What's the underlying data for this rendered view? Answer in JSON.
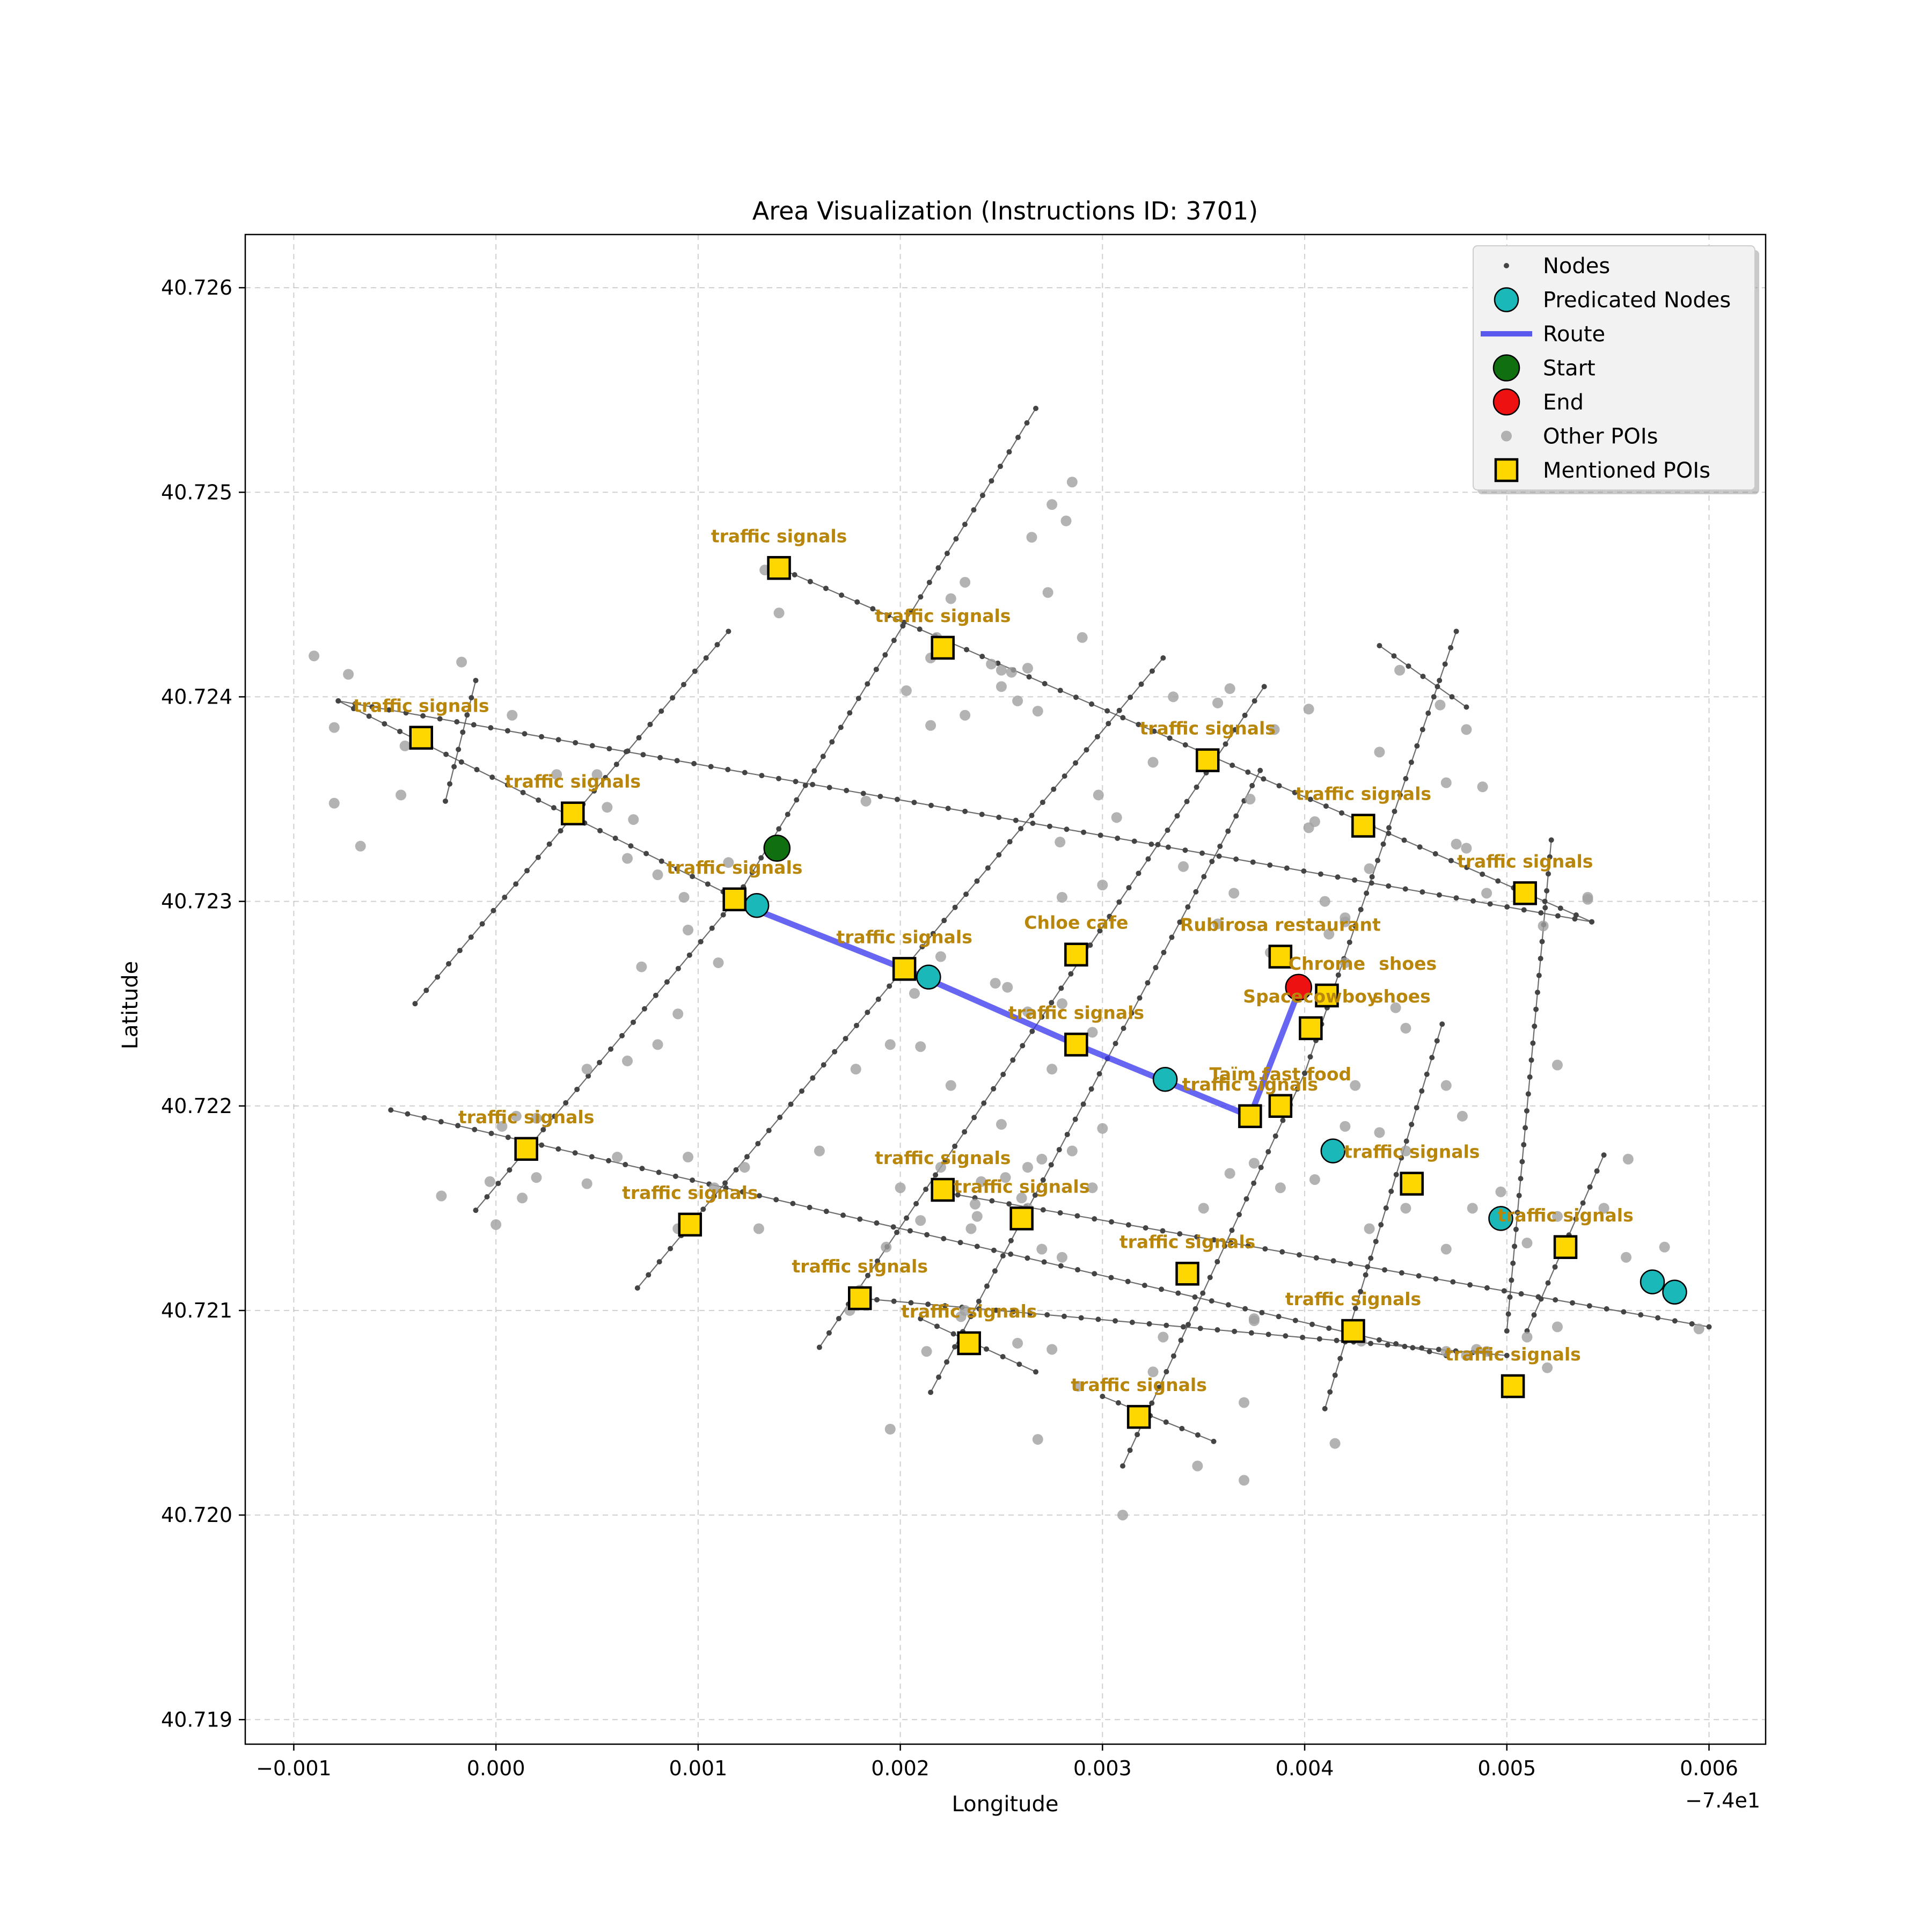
{
  "chart_data": {
    "type": "scatter",
    "title": "Area Visualization (Instructions ID: 3701)",
    "xlabel": "Longitude",
    "ylabel": "Latitude",
    "x_offset_label": "−7.4e1",
    "xlim": [
      -0.00124,
      0.00628
    ],
    "ylim": [
      40.71888,
      40.72626
    ],
    "x_ticks": [
      -0.001,
      0.0,
      0.001,
      0.002,
      0.003,
      0.004,
      0.005,
      0.006
    ],
    "x_tick_labels": [
      "−0.001",
      "0.000",
      "0.001",
      "0.002",
      "0.003",
      "0.004",
      "0.005",
      "0.006"
    ],
    "y_ticks": [
      40.719,
      40.72,
      40.721,
      40.722,
      40.723,
      40.724,
      40.725,
      40.726
    ],
    "y_tick_labels": [
      "40.719",
      "40.720",
      "40.721",
      "40.722",
      "40.723",
      "40.724",
      "40.725",
      "40.726"
    ],
    "grid": true,
    "legend_position": "top-right",
    "legend": [
      {
        "key": "nodes",
        "label": "Nodes"
      },
      {
        "key": "predicated",
        "label": "Predicated Nodes"
      },
      {
        "key": "route",
        "label": "Route"
      },
      {
        "key": "start",
        "label": "Start"
      },
      {
        "key": "end",
        "label": "End"
      },
      {
        "key": "other_pois",
        "label": "Other POIs"
      },
      {
        "key": "mentioned_pois",
        "label": "Mentioned POIs"
      }
    ],
    "colors": {
      "nodes": "#444444",
      "streets": "#555555",
      "predicated": "#1ab8b8",
      "route": "#3333ee",
      "start": "#107010",
      "end": "#ee1111",
      "other_pois": "#a0a0a0",
      "mentioned_fill": "#ffd700",
      "poi_label": "#b8860b"
    },
    "streets": [
      [
        [
          -0.00078,
          40.72398
        ],
        [
          0.00542,
          40.7229
        ]
      ],
      [
        [
          0.0014,
          40.72463
        ],
        [
          0.00542,
          40.7229
        ]
      ],
      [
        [
          -0.00078,
          40.72398
        ],
        [
          0.0012,
          40.72301
        ]
      ],
      [
        [
          -0.00052,
          40.72198
        ],
        [
          0.0047,
          40.72078
        ]
      ],
      [
        [
          0.0018,
          40.72106
        ],
        [
          0.005,
          40.72078
        ]
      ],
      [
        [
          0.0022,
          40.72158
        ],
        [
          0.006,
          40.72092
        ]
      ],
      [
        [
          0.0021,
          40.72096
        ],
        [
          0.00267,
          40.7207
        ]
      ],
      [
        [
          0.003,
          40.72058
        ],
        [
          0.00355,
          40.72036
        ]
      ],
      [
        [
          -0.0004,
          40.7225
        ],
        [
          0.00115,
          40.72432
        ]
      ],
      [
        [
          -0.00025,
          40.72349
        ],
        [
          -0.0001,
          40.72408
        ]
      ],
      [
        [
          -0.0001,
          40.72149
        ],
        [
          0.00118,
          40.723
        ]
      ],
      [
        [
          0.00118,
          40.723
        ],
        [
          0.00267,
          40.72541
        ]
      ],
      [
        [
          0.0007,
          40.72111
        ],
        [
          0.0033,
          40.72419
        ]
      ],
      [
        [
          0.0016,
          40.72082
        ],
        [
          0.0038,
          40.72405
        ]
      ],
      [
        [
          0.00215,
          40.7206
        ],
        [
          0.00378,
          40.72364
        ]
      ],
      [
        [
          0.0031,
          40.72024
        ],
        [
          0.004,
          40.72216
        ]
      ],
      [
        [
          0.004,
          40.72216
        ],
        [
          0.00475,
          40.72432
        ]
      ],
      [
        [
          0.0041,
          40.72052
        ],
        [
          0.00468,
          40.7224
        ]
      ],
      [
        [
          0.005,
          40.7209
        ],
        [
          0.00522,
          40.7233
        ]
      ],
      [
        [
          0.0051,
          40.7209
        ],
        [
          0.00548,
          40.72176
        ]
      ],
      [
        [
          0.00437,
          40.72425
        ],
        [
          0.0048,
          40.72395
        ]
      ]
    ],
    "route": [
      [
        0.00118,
        40.723
      ],
      [
        0.00202,
        40.72267
      ],
      [
        0.00287,
        40.7223
      ],
      [
        0.00373,
        40.72195
      ],
      [
        0.00397,
        40.72256
      ]
    ],
    "predicated_nodes": [
      [
        0.00129,
        40.72298
      ],
      [
        0.00214,
        40.72263
      ],
      [
        0.00331,
        40.72213
      ],
      [
        0.00414,
        40.72178
      ],
      [
        0.00497,
        40.72145
      ],
      [
        0.00572,
        40.72114
      ],
      [
        0.00583,
        40.72109
      ]
    ],
    "start": [
      0.00139,
      40.72326
    ],
    "end": [
      0.00397,
      40.72258
    ],
    "other_pois": [
      [
        -0.0009,
        40.7242
      ],
      [
        -0.00073,
        40.72411
      ],
      [
        -0.0008,
        40.72385
      ],
      [
        -0.0008,
        40.72348
      ],
      [
        -0.00067,
        40.72327
      ],
      [
        -0.00017,
        40.72417
      ],
      [
        -0.00045,
        40.72376
      ],
      [
        -0.00047,
        40.72352
      ],
      [
        0.0005,
        40.72362
      ],
      [
        0.00068,
        40.7234
      ],
      [
        0.00055,
        40.72346
      ],
      [
        0.00065,
        40.72321
      ],
      [
        0.0008,
        40.72313
      ],
      [
        0.00093,
        40.72302
      ],
      [
        0.0011,
        40.7227
      ],
      [
        0.0008,
        40.7223
      ],
      [
        0.00065,
        40.72222
      ],
      [
        0.00045,
        40.72218
      ],
      [
        0.0009,
        40.72245
      ],
      [
        0.00072,
        40.72268
      ],
      [
        0.00095,
        40.72286
      ],
      [
        0.00115,
        40.72319
      ],
      [
        8e-05,
        40.72391
      ],
      [
        0.0003,
        40.72362
      ],
      [
        0.00133,
        40.72462
      ],
      [
        0.0014,
        40.72441
      ],
      [
        0.00183,
        40.72349
      ],
      [
        0.00215,
        40.72419
      ],
      [
        0.00215,
        40.72386
      ],
      [
        0.00232,
        40.72391
      ],
      [
        0.00218,
        40.72429
      ],
      [
        0.00225,
        40.72448
      ],
      [
        0.00232,
        40.72456
      ],
      [
        0.00245,
        40.72416
      ],
      [
        0.0025,
        40.72413
      ],
      [
        0.00265,
        40.72478
      ],
      [
        0.00275,
        40.72494
      ],
      [
        0.00273,
        40.72451
      ],
      [
        0.0029,
        40.72429
      ],
      [
        0.00285,
        40.72505
      ],
      [
        0.00282,
        40.72486
      ],
      [
        0.0025,
        40.72405
      ],
      [
        0.00255,
        40.72412
      ],
      [
        0.00203,
        40.72403
      ],
      [
        0.00263,
        40.72414
      ],
      [
        0.00268,
        40.72393
      ],
      [
        0.00298,
        40.72352
      ],
      [
        0.00258,
        40.72398
      ],
      [
        0.00279,
        40.72329
      ],
      [
        0.0028,
        40.72302
      ],
      [
        0.003,
        40.72308
      ],
      [
        0.00307,
        40.72341
      ],
      [
        0.00325,
        40.72368
      ],
      [
        0.00335,
        40.724
      ],
      [
        0.00357,
        40.72397
      ],
      [
        0.00363,
        40.72404
      ],
      [
        0.00373,
        40.7235
      ],
      [
        0.0034,
        40.72317
      ],
      [
        0.00357,
        40.72289
      ],
      [
        0.00365,
        40.72304
      ],
      [
        0.00385,
        40.72384
      ],
      [
        0.00402,
        40.72394
      ],
      [
        0.0041,
        40.723
      ],
      [
        0.0042,
        40.72292
      ],
      [
        0.0042,
        40.7229
      ],
      [
        0.00402,
        40.72336
      ],
      [
        0.00405,
        40.72339
      ],
      [
        0.00432,
        40.72316
      ],
      [
        0.00437,
        40.72373
      ],
      [
        0.00447,
        40.72413
      ],
      [
        0.00467,
        40.72396
      ],
      [
        0.0047,
        40.72358
      ],
      [
        0.0048,
        40.72384
      ],
      [
        0.00488,
        40.72356
      ],
      [
        0.0048,
        40.72326
      ],
      [
        0.00475,
        40.72328
      ],
      [
        0.0049,
        40.72304
      ],
      [
        0.00518,
        40.72288
      ],
      [
        0.0054,
        40.72301
      ],
      [
        0.0054,
        40.72302
      ],
      [
        0.00525,
        40.7222
      ],
      [
        0.00295,
        40.72236
      ],
      [
        0.00275,
        40.72218
      ],
      [
        0.00263,
        40.72246
      ],
      [
        0.00253,
        40.72258
      ],
      [
        0.003,
        40.72189
      ],
      [
        0.00295,
        40.7216
      ],
      [
        0.00285,
        40.72178
      ],
      [
        0.0028,
        40.7225
      ],
      [
        0.0027,
        40.72174
      ],
      [
        0.0025,
        40.72191
      ],
      [
        0.00225,
        40.7221
      ],
      [
        0.0022,
        40.7217
      ],
      [
        0.0024,
        40.72163
      ],
      [
        0.00238,
        40.72146
      ],
      [
        0.00252,
        40.72165
      ],
      [
        0.0026,
        40.72155
      ],
      [
        0.00263,
        40.7215
      ],
      [
        0.00263,
        40.7217
      ],
      [
        0.0027,
        40.7213
      ],
      [
        0.0028,
        40.72126
      ],
      [
        0.0016,
        40.72178
      ],
      [
        0.00178,
        40.72218
      ],
      [
        0.00195,
        40.7223
      ],
      [
        0.0021,
        40.72229
      ],
      [
        0.00207,
        40.72255
      ],
      [
        0.0022,
        40.72273
      ],
      [
        0.00247,
        40.7226
      ],
      [
        0.00237,
        40.72152
      ],
      [
        0.00235,
        40.7214
      ],
      [
        0.0021,
        40.72144
      ],
      [
        0.00193,
        40.72131
      ],
      [
        0.002,
        40.7216
      ],
      [
        0.0035,
        40.7215
      ],
      [
        0.00363,
        40.72167
      ],
      [
        0.00375,
        40.72172
      ],
      [
        0.00388,
        40.7216
      ],
      [
        0.00405,
        40.72164
      ],
      [
        0.0042,
        40.7219
      ],
      [
        0.00432,
        40.7214
      ],
      [
        0.0045,
        40.7215
      ],
      [
        0.0047,
        40.7213
      ],
      [
        0.00483,
        40.7215
      ],
      [
        0.00497,
        40.72158
      ],
      [
        0.0051,
        40.72133
      ],
      [
        0.00525,
        40.72146
      ],
      [
        0.00548,
        40.7215
      ],
      [
        0.00559,
        40.72126
      ],
      [
        0.00578,
        40.72131
      ],
      [
        0.00595,
        40.72091
      ],
      [
        0.0056,
        40.72174
      ],
      [
        0.00525,
        40.72092
      ],
      [
        0.0051,
        40.72087
      ],
      [
        0.0049,
        40.7208
      ],
      [
        0.00485,
        40.72081
      ],
      [
        0.0052,
        40.72072
      ],
      [
        0.0048,
        40.72078
      ],
      [
        0.0047,
        40.7208
      ],
      [
        0.00428,
        40.72085
      ],
      [
        0.00415,
        40.72035
      ],
      [
        0.00375,
        40.72095
      ],
      [
        0.00375,
        40.72096
      ],
      [
        0.0037,
        40.72055
      ],
      [
        0.0037,
        40.72017
      ],
      [
        0.00347,
        40.72024
      ],
      [
        0.0033,
        40.72087
      ],
      [
        0.00325,
        40.7207
      ],
      [
        0.0031,
        40.72
      ],
      [
        0.00288,
        40.72063
      ],
      [
        0.00275,
        40.72081
      ],
      [
        0.00268,
        40.72037
      ],
      [
        0.00258,
        40.72084
      ],
      [
        0.0023,
        40.72097
      ],
      [
        0.00232,
        40.721
      ],
      [
        0.00213,
        40.7208
      ],
      [
        0.00195,
        40.72042
      ],
      [
        0.00175,
        40.721
      ],
      [
        0.0018,
        40.7211
      ],
      [
        0.0013,
        40.7214
      ],
      [
        0.00123,
        40.7217
      ],
      [
        0.00108,
        40.7216
      ],
      [
        0.00095,
        40.72175
      ],
      [
        0.0009,
        40.7214
      ],
      [
        0.0006,
        40.72175
      ],
      [
        0.00045,
        40.72162
      ],
      [
        0.0002,
        40.72194
      ],
      [
        0.0001,
        40.72195
      ],
      [
        3e-05,
        40.7219
      ],
      [
        -3e-05,
        40.72163
      ],
      [
        -0.00027,
        40.72156
      ],
      [
        0.0,
        40.72142
      ],
      [
        0.00013,
        40.72155
      ],
      [
        0.0002,
        40.72165
      ],
      [
        0.00383,
        40.72275
      ],
      [
        0.0042,
        40.7227
      ],
      [
        0.00412,
        40.72284
      ],
      [
        0.00445,
        40.72248
      ],
      [
        0.0045,
        40.72238
      ],
      [
        0.00425,
        40.7221
      ],
      [
        0.00437,
        40.72187
      ],
      [
        0.0045,
        40.72178
      ],
      [
        0.0047,
        40.7221
      ],
      [
        0.00478,
        40.72195
      ]
    ],
    "mentioned_pois": [
      {
        "label": "traffic signals",
        "x": 0.0014,
        "y": 40.72463
      },
      {
        "label": "traffic signals",
        "x": 0.00221,
        "y": 40.72424
      },
      {
        "label": "traffic signals",
        "x": -0.00037,
        "y": 40.7238
      },
      {
        "label": "traffic signals",
        "x": 0.00038,
        "y": 40.72343
      },
      {
        "label": "traffic signals",
        "x": 0.00118,
        "y": 40.72301
      },
      {
        "label": "traffic signals",
        "x": 0.00352,
        "y": 40.72369
      },
      {
        "label": "traffic signals",
        "x": 0.00429,
        "y": 40.72337
      },
      {
        "label": "traffic signals",
        "x": 0.00509,
        "y": 40.72304
      },
      {
        "label": "traffic signals",
        "x": 0.00202,
        "y": 40.72267
      },
      {
        "label": "Chloe cafe",
        "x": 0.00287,
        "y": 40.72274
      },
      {
        "label": "Rubirosa restaurant",
        "x": 0.00388,
        "y": 40.72273
      },
      {
        "label": "Chrome",
        "x": 0.00411,
        "y": 40.72254
      },
      {
        "label": "shoes",
        "x": 0.00411,
        "y": 40.72254,
        "label_dx": 0.0004,
        "label_dy": 0.00015
      },
      {
        "label": "Spacecowboy",
        "x": 0.00403,
        "y": 40.72238
      },
      {
        "label": "shoes",
        "x": 0.00403,
        "y": 40.72238,
        "label_dx": 0.00045,
        "label_dy": 0.00015
      },
      {
        "label": "traffic signals",
        "x": 0.00287,
        "y": 40.7223
      },
      {
        "label": "Taïm fast food",
        "x": 0.00388,
        "y": 40.722
      },
      {
        "label": "traffic signals",
        "x": 0.00373,
        "y": 40.72195
      },
      {
        "label": "traffic signals",
        "x": 0.00015,
        "y": 40.72179
      },
      {
        "label": "traffic signals",
        "x": 0.00096,
        "y": 40.72142
      },
      {
        "label": "traffic signals",
        "x": 0.00221,
        "y": 40.72159
      },
      {
        "label": "traffic signals",
        "x": 0.0026,
        "y": 40.72145
      },
      {
        "label": "traffic signals",
        "x": 0.00453,
        "y": 40.72162
      },
      {
        "label": "traffic signals",
        "x": 0.00529,
        "y": 40.72131
      },
      {
        "label": "traffic signals",
        "x": 0.0018,
        "y": 40.72106
      },
      {
        "label": "traffic signals",
        "x": 0.00342,
        "y": 40.72118
      },
      {
        "label": "traffic signals",
        "x": 0.00234,
        "y": 40.72084
      },
      {
        "label": "traffic signals",
        "x": 0.00424,
        "y": 40.7209
      },
      {
        "label": "traffic signals",
        "x": 0.00503,
        "y": 40.72063
      },
      {
        "label": "traffic signals",
        "x": 0.00318,
        "y": 40.72048
      }
    ]
  }
}
